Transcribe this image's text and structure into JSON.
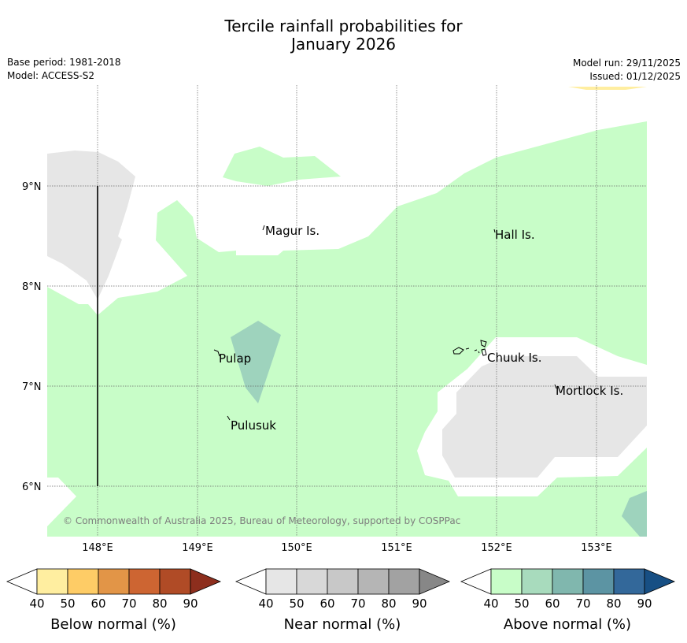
{
  "header": {
    "title_line1": "Tercile rainfall probabilities for",
    "title_line2": "January 2026",
    "base_period": "Base period: 1981-2018",
    "model": "Model: ACCESS-S2",
    "model_run": "Model run: 29/11/2025",
    "issued": "Issued: 01/12/2025"
  },
  "map": {
    "lat_ticks": [
      "9°N",
      "8°N",
      "7°N",
      "6°N"
    ],
    "lon_ticks": [
      "148°E",
      "149°E",
      "150°E",
      "151°E",
      "152°E",
      "153°E"
    ],
    "places": {
      "magur": "Magur Is.",
      "hall": "Hall Is.",
      "pulap": "Pulap",
      "chuuk": "Chuuk Is.",
      "mortlock": "Mortlock Is.",
      "pulusuk": "Pulusuk"
    },
    "copyright": "© Commonwealth of Australia 2025, Bureau of Meteorology, supported by COSPPac"
  },
  "legend": {
    "ticks": [
      "40",
      "50",
      "60",
      "70",
      "80",
      "90"
    ],
    "below": {
      "label": "Below normal (%)",
      "colors": [
        "#ffffff",
        "#ffeea0",
        "#fecc66",
        "#e29547",
        "#cd6532",
        "#b04b26",
        "#8d2e1d"
      ]
    },
    "near": {
      "label": "Near normal (%)",
      "colors": [
        "#ffffff",
        "#e6e6e6",
        "#d8d8d8",
        "#c8c8c8",
        "#b5b5b5",
        "#a2a2a2",
        "#878787"
      ]
    },
    "above": {
      "label": "Above normal (%)",
      "colors": [
        "#ffffff",
        "#c8fdc8",
        "#a8dbbd",
        "#80b7ae",
        "#5c94a3",
        "#33689a",
        "#174f84"
      ]
    }
  }
}
